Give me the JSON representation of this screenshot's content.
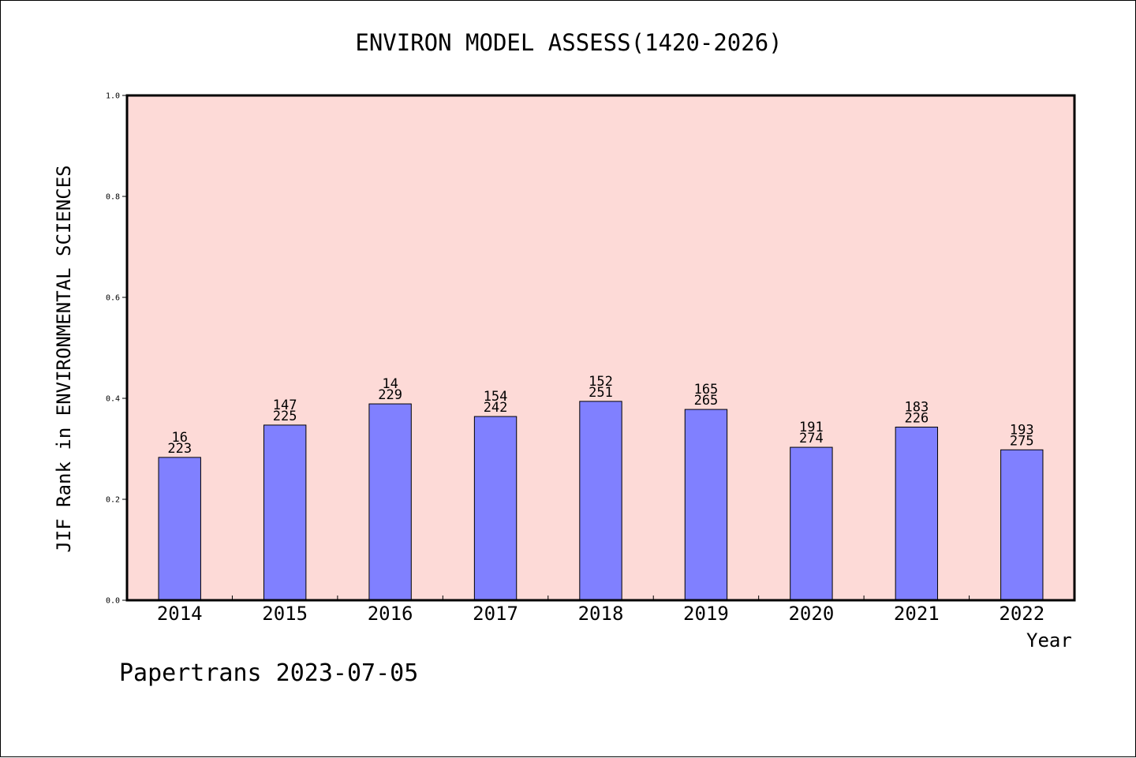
{
  "chart_data": {
    "type": "bar",
    "title": "ENVIRON MODEL ASSESS(1420-2026)",
    "xlabel": "Year",
    "ylabel": "JIF Rank in ENVIRONMENTAL SCIENCES",
    "ylim": [
      0,
      1.0
    ],
    "yticks": [
      "0.0",
      "0.2",
      "0.4",
      "0.6",
      "0.8",
      "1.0"
    ],
    "grid": false,
    "legend": "none",
    "categories": [
      "2014",
      "2015",
      "2016",
      "2017",
      "2018",
      "2019",
      "2020",
      "2021",
      "2022"
    ],
    "values": [
      0.283,
      0.347,
      0.389,
      0.364,
      0.394,
      0.378,
      0.303,
      0.343,
      0.298
    ],
    "labels_top": [
      "16",
      "147",
      "14",
      "154",
      "152",
      "165",
      "191",
      "183",
      "193"
    ],
    "labels_bottom": [
      "223",
      "225",
      "229",
      "242",
      "251",
      "265",
      "274",
      "226",
      "275"
    ],
    "colors": {
      "plot_background": "#fddad7",
      "bar_fill": "#8080ff",
      "bar_stroke": "#000000"
    }
  },
  "footer": "Papertrans 2023-07-05"
}
